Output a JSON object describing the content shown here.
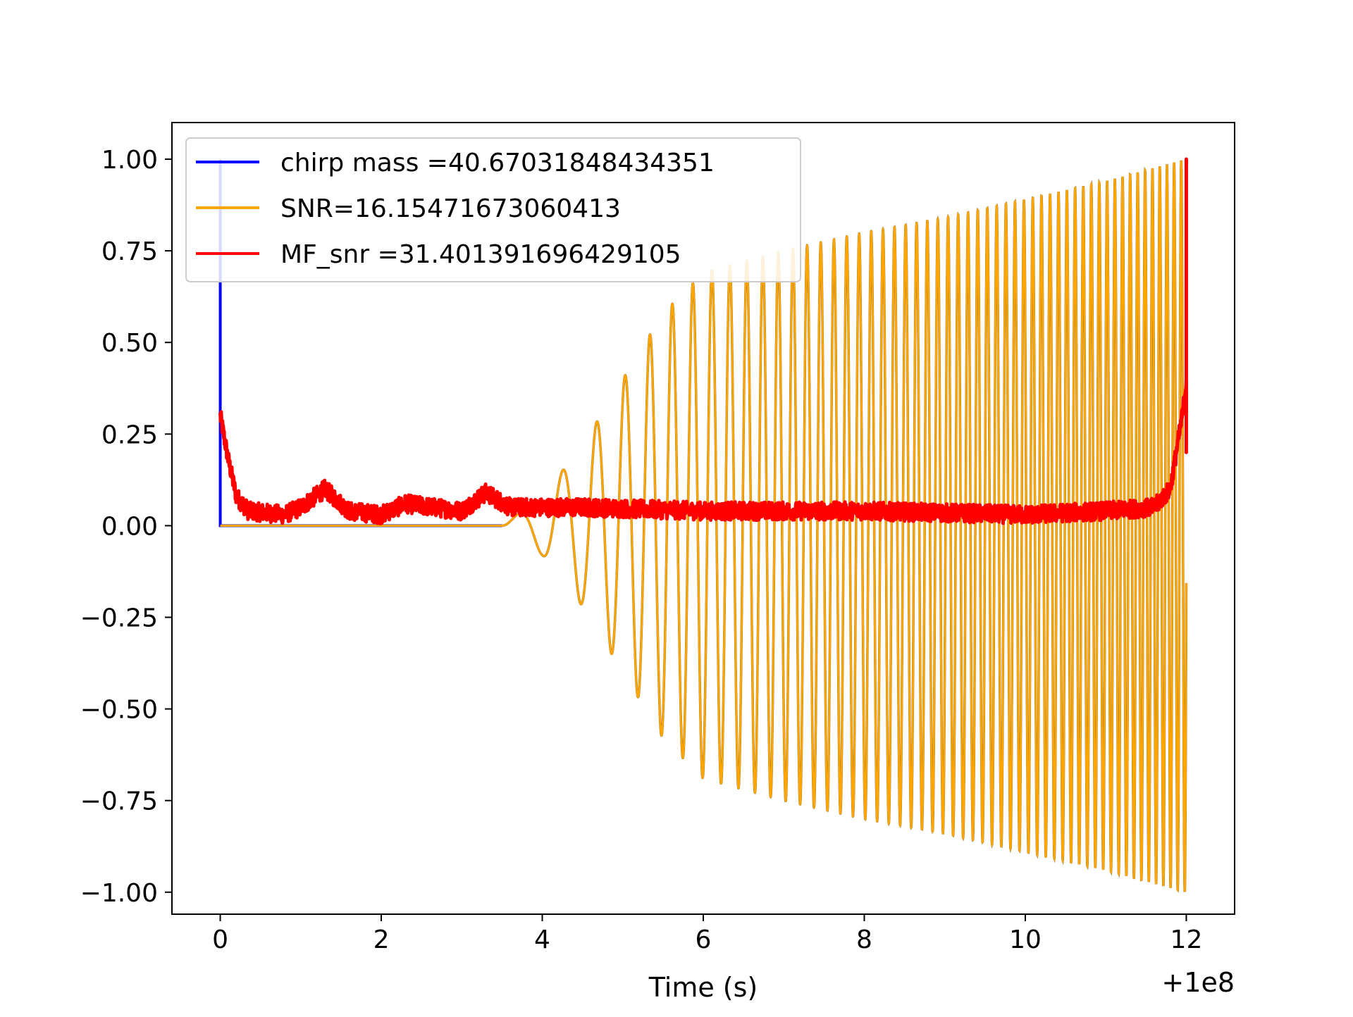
{
  "chart_data": {
    "type": "line",
    "title": "",
    "xlabel": "Time (s)",
    "ylabel": "",
    "x_offset_label": "+1e8",
    "xlim": [
      -0.6,
      12.6
    ],
    "ylim": [
      -1.06,
      1.1
    ],
    "grid": false,
    "legend_position": "top-left",
    "x_ticks": [
      0,
      2,
      4,
      6,
      8,
      10,
      12
    ],
    "x_tick_labels": [
      "0",
      "2",
      "4",
      "6",
      "8",
      "10",
      "12"
    ],
    "y_ticks": [
      1.0,
      0.75,
      0.5,
      0.25,
      0.0,
      -0.25,
      -0.5,
      -0.75,
      -1.0
    ],
    "y_tick_labels": [
      "1.00",
      "0.75",
      "0.50",
      "0.25",
      "0.00",
      "−0.25",
      "−0.50",
      "−0.75",
      "−1.00"
    ],
    "series": [
      {
        "name": "chirp mass =40.67031848434351",
        "color": "#0000ff",
        "points": [
          [
            0.0,
            0.0
          ],
          [
            0.0,
            1.0
          ],
          [
            0.0,
            0.0
          ],
          [
            3.5,
            0.0
          ]
        ]
      },
      {
        "name": "SNR=16.15471673060413",
        "color": "#ffa500",
        "signal": {
          "start": 3.5,
          "end": 12.0,
          "envelope": [
            [
              3.5,
              0.0
            ],
            [
              4.0,
              0.08
            ],
            [
              4.5,
              0.22
            ],
            [
              5.0,
              0.4
            ],
            [
              5.5,
              0.58
            ],
            [
              6.0,
              0.69
            ],
            [
              7.0,
              0.75
            ],
            [
              8.0,
              0.8
            ],
            [
              9.0,
              0.84
            ],
            [
              10.0,
              0.89
            ],
            [
              11.0,
              0.94
            ],
            [
              12.0,
              1.0
            ]
          ],
          "freq_start": 1.2,
          "freq_end": 11.5
        }
      },
      {
        "name": "MF_snr =31.401391696429105",
        "color": "#ff0000",
        "baseline": [
          [
            0.0,
            0.3
          ],
          [
            0.1,
            0.18
          ],
          [
            0.2,
            0.08
          ],
          [
            0.35,
            0.04
          ],
          [
            0.8,
            0.03
          ],
          [
            1.0,
            0.05
          ],
          [
            1.3,
            0.1
          ],
          [
            1.6,
            0.04
          ],
          [
            2.0,
            0.03
          ],
          [
            2.3,
            0.06
          ],
          [
            3.0,
            0.04
          ],
          [
            3.3,
            0.09
          ],
          [
            3.6,
            0.05
          ],
          [
            4.5,
            0.05
          ],
          [
            6.0,
            0.04
          ],
          [
            8.0,
            0.04
          ],
          [
            10.0,
            0.03
          ],
          [
            11.0,
            0.04
          ],
          [
            11.6,
            0.05
          ],
          [
            11.8,
            0.1
          ],
          [
            11.95,
            0.3
          ],
          [
            12.0,
            0.4
          ]
        ],
        "noise_amplitude": 0.025,
        "end_spike": [
          [
            12.0,
            0.2
          ],
          [
            12.0,
            1.0
          ],
          [
            12.0,
            0.4
          ]
        ]
      }
    ]
  }
}
